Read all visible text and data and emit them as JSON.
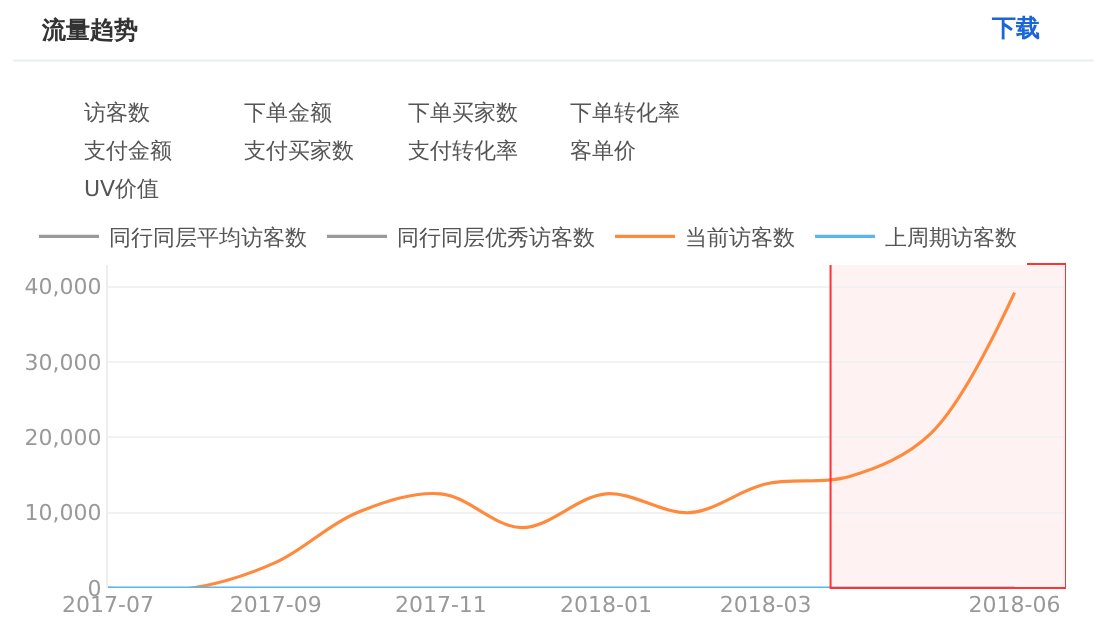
{
  "chart_data": {
    "type": "line",
    "title": "流量趋势",
    "x": [
      "2017-07",
      "2017-08",
      "2017-09",
      "2017-10",
      "2017-11",
      "2017-12",
      "2018-01",
      "2018-02",
      "2018-03",
      "2018-04",
      "2018-05",
      "2018-06"
    ],
    "series": [
      {
        "name": "同行同层平均访客数",
        "color": "#999999",
        "values": [
          null,
          null,
          null,
          null,
          null,
          null,
          null,
          null,
          null,
          null,
          null,
          null
        ]
      },
      {
        "name": "同行同层优秀访客数",
        "color": "#999999",
        "values": [
          null,
          null,
          null,
          null,
          null,
          null,
          null,
          null,
          null,
          null,
          null,
          null
        ]
      },
      {
        "name": "当前访客数",
        "color": "#ff8a3d",
        "values": [
          0,
          0,
          3400,
          10000,
          12500,
          8000,
          12500,
          10000,
          13800,
          14800,
          20500,
          39200
        ]
      },
      {
        "name": "上周期访客数",
        "color": "#5ab4f0",
        "values": [
          0,
          0,
          0,
          0,
          0,
          0,
          0,
          0,
          0,
          0,
          0,
          0
        ]
      }
    ],
    "xlim": [
      "2017-07-01",
      "2018-06-20"
    ],
    "xticks": [
      {
        "value": "2017-07-01",
        "label": "2017-07"
      },
      {
        "value": "2017-09-01",
        "label": "2017-09"
      },
      {
        "value": "2017-11-01",
        "label": "2017-11"
      },
      {
        "value": "2018-01-01",
        "label": "2018-01"
      },
      {
        "value": "2018-03-01",
        "label": "2018-03"
      },
      {
        "value": "2018-06-01",
        "label": "2018-06"
      }
    ],
    "ylim": [
      0,
      43000
    ],
    "yticks": [
      {
        "value": 0,
        "label": "0"
      },
      {
        "value": 10000,
        "label": "10,000"
      },
      {
        "value": 20000,
        "label": "20,000"
      },
      {
        "value": 30000,
        "label": "30,000"
      },
      {
        "value": 40000,
        "label": "40,000"
      }
    ],
    "bands": [
      {
        "axis": "x",
        "from": "2018-03-25",
        "to": "2018-06-20",
        "color": "#ff3333"
      }
    ],
    "annotations": [
      "下载",
      "访客数",
      "下单金额",
      "下单买家数",
      "下单转化率",
      "支付金额",
      "支付买家数",
      "支付转化率",
      "客单价",
      "UV价值"
    ],
    "grid": "y",
    "legend": "top left",
    "line_style": "solid",
    "marker": "none"
  }
}
